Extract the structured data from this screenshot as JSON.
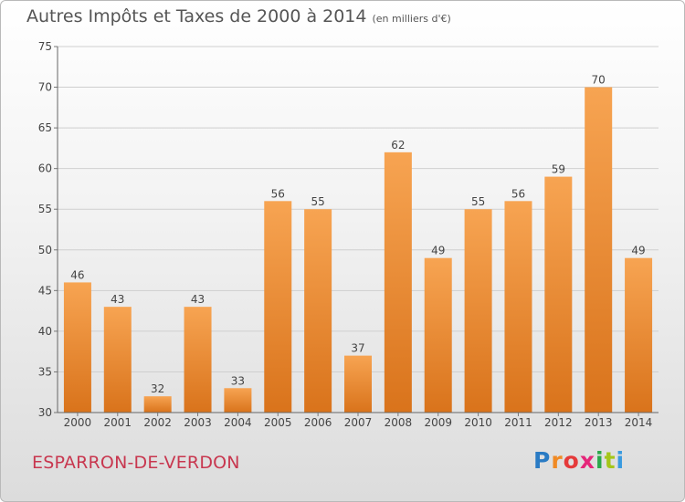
{
  "header": {
    "title": "Autres Impôts et Taxes de 2000 à 2014",
    "unit": "(en milliers d'€)"
  },
  "footer": {
    "commune": "ESPARRON-DE-VERDON",
    "logo": "Proxiti"
  },
  "chart_data": {
    "type": "bar",
    "title": "Autres Impôts et Taxes de 2000 à 2014",
    "subtitle": "(en milliers d'€)",
    "xlabel": "",
    "ylabel": "",
    "categories": [
      "2000",
      "2001",
      "2002",
      "2003",
      "2004",
      "2005",
      "2006",
      "2007",
      "2008",
      "2009",
      "2010",
      "2011",
      "2012",
      "2013",
      "2014"
    ],
    "values": [
      46,
      43,
      32,
      43,
      33,
      56,
      55,
      37,
      62,
      49,
      55,
      56,
      59,
      70,
      49
    ],
    "ylim": [
      30,
      75
    ],
    "yticks": [
      30,
      35,
      40,
      45,
      50,
      55,
      60,
      65,
      70,
      75
    ],
    "grid": true,
    "data_labels": true,
    "bar_color": "#f0922f"
  }
}
